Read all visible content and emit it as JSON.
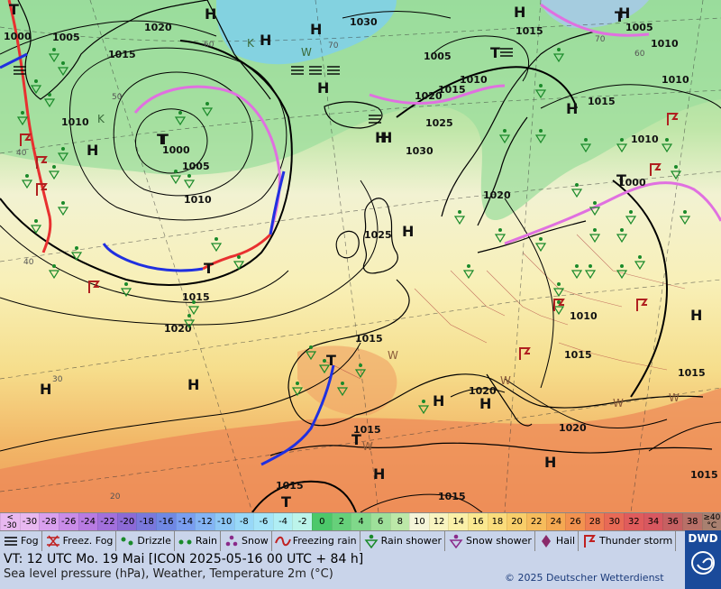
{
  "isobars": [
    "1000",
    "1005",
    "1005",
    "1005",
    "1005",
    "1010",
    "1010",
    "1010",
    "1010",
    "1010",
    "1010",
    "1015",
    "1015",
    "1015",
    "1015",
    "1015",
    "1015",
    "1015",
    "1015",
    "1015",
    "1015",
    "1020",
    "1020",
    "1020",
    "1020",
    "1020",
    "1020",
    "1025",
    "1025",
    "1030",
    "1030",
    "1000",
    "1000"
  ],
  "pressure_centers": [
    "T",
    "H",
    "H",
    "H",
    "H",
    "H",
    "H",
    "H",
    "T",
    "H",
    "H",
    "T",
    "H",
    "H",
    "H",
    "H",
    "H",
    "T",
    "T",
    "T",
    "T",
    "H",
    "H",
    "H",
    "T",
    "T",
    "T",
    "H"
  ],
  "small_labels": [
    "K",
    "K",
    "W",
    "W",
    "W",
    "W",
    "W",
    "W"
  ],
  "lat_labels": [
    "60",
    "50",
    "40",
    "40",
    "30",
    "20",
    "70",
    "70",
    "60"
  ],
  "scale": {
    "first": [
      "<",
      "-30"
    ],
    "values": [
      "-30",
      "-28",
      "-26",
      "-24",
      "-22",
      "-20",
      "-18",
      "-16",
      "-14",
      "-12",
      "-10",
      "-8",
      "-6",
      "-4",
      "-2",
      "0",
      "2",
      "4",
      "6",
      "8",
      "10",
      "12",
      "14",
      "16",
      "18",
      "20",
      "22",
      "24",
      "26",
      "28",
      "30",
      "32",
      "34",
      "36",
      "38"
    ],
    "last": [
      "≥40",
      "°C"
    ],
    "colors": [
      "#e8b8f0",
      "#d9a0ee",
      "#c98ce8",
      "#b87be2",
      "#a270dc",
      "#8c6ad6",
      "#7a78dc",
      "#7088e4",
      "#7a9ef0",
      "#84b4f4",
      "#8ec8f6",
      "#98d8f8",
      "#a4e4f8",
      "#b0eef4",
      "#bcf4ea",
      "#4cc86a",
      "#66d07a",
      "#80d88a",
      "#9ee09a",
      "#bce8a8",
      "#f4f4d8",
      "#f8f4c0",
      "#faf0a8",
      "#fae890",
      "#fadc7c",
      "#f8ce6a",
      "#f6bc5c",
      "#f4a852",
      "#f29250",
      "#ee7c52",
      "#e86a56",
      "#e05c5c",
      "#d85860",
      "#c66062",
      "#b87068",
      "#a88070"
    ]
  },
  "legend": [
    "Fog",
    "Freez. Fog",
    "Drizzle",
    "Rain",
    "Snow",
    "Freezing rain",
    "Rain shower",
    "Snow shower",
    "Hail",
    "Thunder storm"
  ],
  "vt_line": "VT: 12 UTC Mo.  19 Mai [ICON 2025-05-16  00 UTC + 84 h]",
  "description": "Sea level pressure (hPa), Weather, Temperature 2m (°C)",
  "copyright": "© 2025 Deutscher Wetterdienst",
  "logo_text": "DWD",
  "colors": {
    "warm_front": "#e83030",
    "cold_front": "#2030e0",
    "occlusion": "#e070e0",
    "isobar": "#000000",
    "coast": "#000000"
  }
}
